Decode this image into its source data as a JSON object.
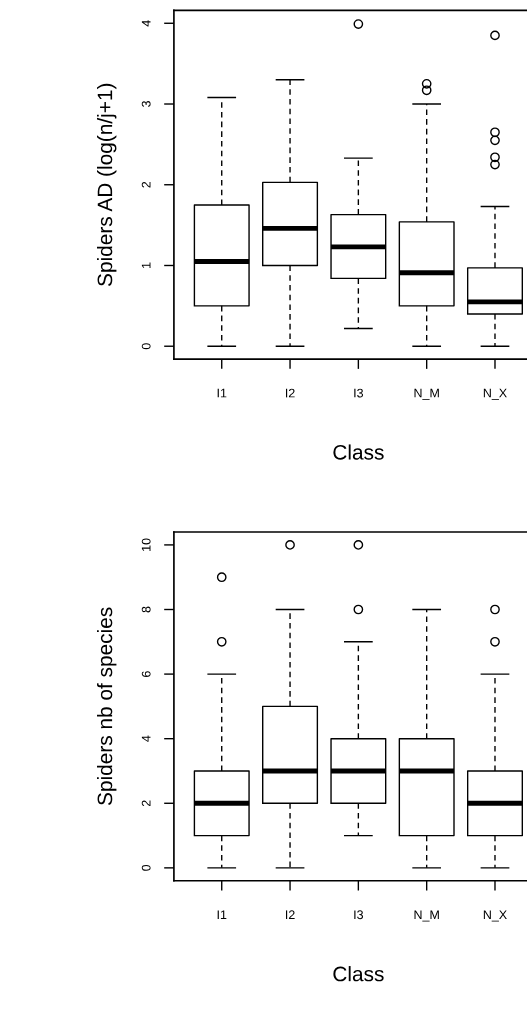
{
  "chart_data": [
    {
      "type": "box",
      "xlabel": "Class",
      "ylabel": "Spiders AD (log(n/j+1)",
      "categories": [
        "I1",
        "I2",
        "I3",
        "N_M",
        "N_X"
      ],
      "ylim": [
        -0.16,
        4.16
      ],
      "yticks": [
        0,
        1,
        2,
        3,
        4
      ],
      "grid": false,
      "boxes": [
        {
          "low": 0,
          "q1": 0.5,
          "median": 1.05,
          "q3": 1.75,
          "high": 3.08
        },
        {
          "low": 0,
          "q1": 1.0,
          "median": 1.46,
          "q3": 2.03,
          "high": 3.3
        },
        {
          "low": 0.22,
          "q1": 0.84,
          "median": 1.23,
          "q3": 1.63,
          "high": 2.33,
          "outliers": [
            3.99
          ]
        },
        {
          "low": 0,
          "q1": 0.5,
          "median": 0.91,
          "q3": 1.54,
          "high": 3.0,
          "outliers": [
            3.25,
            3.17
          ]
        },
        {
          "low": 0,
          "q1": 0.4,
          "median": 0.55,
          "q3": 0.97,
          "high": 1.73,
          "outliers": [
            3.85,
            2.65,
            2.55,
            2.34,
            2.25
          ]
        }
      ]
    },
    {
      "type": "box",
      "xlabel": "Class",
      "ylabel": "Spiders nb of species",
      "categories": [
        "I1",
        "I2",
        "I3",
        "N_M",
        "N_X"
      ],
      "ylim": [
        -0.4,
        10.4
      ],
      "yticks": [
        0,
        2,
        4,
        6,
        8,
        10
      ],
      "grid": false,
      "boxes": [
        {
          "low": 0,
          "q1": 1,
          "median": 2,
          "q3": 3,
          "high": 6,
          "outliers": [
            7,
            9
          ]
        },
        {
          "low": 0,
          "q1": 2,
          "median": 3,
          "q3": 5,
          "high": 8,
          "outliers": [
            10
          ]
        },
        {
          "low": 1,
          "q1": 2,
          "median": 3,
          "q3": 4,
          "high": 7,
          "outliers": [
            8,
            10
          ]
        },
        {
          "low": 0,
          "q1": 1,
          "median": 3,
          "q3": 4,
          "high": 8
        },
        {
          "low": 0,
          "q1": 1,
          "median": 2,
          "q3": 3,
          "high": 6,
          "outliers": [
            7,
            8
          ]
        }
      ]
    }
  ]
}
